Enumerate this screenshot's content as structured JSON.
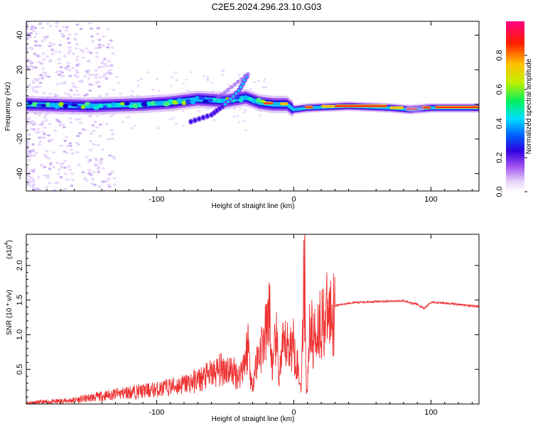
{
  "title": "C2E5.2024.296.23.10.G03",
  "spectrogram": {
    "type": "heatmap",
    "xlabel": "Height of straight line (km)",
    "ylabel": "Frequency (Hz)",
    "xlim": [
      -195,
      135
    ],
    "ylim": [
      -50,
      48
    ],
    "x_ticks": [
      -100,
      0,
      100
    ],
    "x_tick_labels": [
      "-100",
      "0",
      "100"
    ],
    "y_ticks": [
      -40,
      -20,
      0,
      20,
      40
    ],
    "y_tick_labels": [
      "-40",
      "-20",
      "0",
      "20",
      "40"
    ],
    "ridge": [
      {
        "x": -195,
        "y": 0
      },
      {
        "x": -150,
        "y": -1
      },
      {
        "x": -110,
        "y": 0
      },
      {
        "x": -90,
        "y": 1
      },
      {
        "x": -70,
        "y": 3
      },
      {
        "x": -50,
        "y": 2
      },
      {
        "x": -35,
        "y": 4
      },
      {
        "x": -25,
        "y": 1
      },
      {
        "x": -15,
        "y": 0
      },
      {
        "x": -5,
        "y": 0
      },
      {
        "x": 0,
        "y": -3
      },
      {
        "x": 10,
        "y": -2
      },
      {
        "x": 40,
        "y": -1
      },
      {
        "x": 70,
        "y": -2
      },
      {
        "x": 85,
        "y": -3
      },
      {
        "x": 100,
        "y": -2
      },
      {
        "x": 135,
        "y": -2
      }
    ],
    "branch": [
      {
        "x": -75,
        "y": -10
      },
      {
        "x": -60,
        "y": -6
      },
      {
        "x": -50,
        "y": 0
      },
      {
        "x": -40,
        "y": 8
      },
      {
        "x": -33,
        "y": 18
      }
    ],
    "colorbar": {
      "label": "Normalized spectral amplitude",
      "ticks": [
        0.0,
        0.2,
        0.4,
        0.6,
        0.8
      ],
      "tick_labels": [
        "0.0",
        "0.2",
        "0.4",
        "0.6",
        "0.8"
      ],
      "range": [
        0,
        1
      ],
      "colors": [
        "#ffffff",
        "#e0c8f8",
        "#a050f0",
        "#3000e0",
        "#0060ff",
        "#00e0ff",
        "#00f060",
        "#c0f000",
        "#ffc000",
        "#ff2000",
        "#ff0080"
      ]
    }
  },
  "snr": {
    "type": "line",
    "xlabel": "Height of straight line (km)",
    "ylabel": "SNR (10 * v/v)",
    "scale_note": "(x10",
    "scale_exp": "4",
    "xlim": [
      -195,
      135
    ],
    "ylim": [
      0,
      2.45
    ],
    "x_ticks": [
      -100,
      0,
      100
    ],
    "x_tick_labels": [
      "-100",
      "0",
      "100"
    ],
    "y_ticks": [
      0.5,
      1.0,
      1.5,
      2.0
    ],
    "y_tick_labels": [
      "0.5",
      "1.0",
      "1.5",
      "2.0"
    ],
    "color": "#ee3030",
    "points": [
      {
        "x": -195,
        "y": 0.02
      },
      {
        "x": -180,
        "y": 0.03
      },
      {
        "x": -160,
        "y": 0.06
      },
      {
        "x": -150,
        "y": 0.09
      },
      {
        "x": -140,
        "y": 0.12
      },
      {
        "x": -120,
        "y": 0.18
      },
      {
        "x": -100,
        "y": 0.22
      },
      {
        "x": -90,
        "y": 0.26
      },
      {
        "x": -80,
        "y": 0.3
      },
      {
        "x": -70,
        "y": 0.36
      },
      {
        "x": -60,
        "y": 0.45
      },
      {
        "x": -50,
        "y": 0.55
      },
      {
        "x": -45,
        "y": 0.5
      },
      {
        "x": -40,
        "y": 0.42
      },
      {
        "x": -35,
        "y": 0.72
      },
      {
        "x": -33,
        "y": 0.95
      },
      {
        "x": -31,
        "y": 0.25
      },
      {
        "x": -28,
        "y": 0.55
      },
      {
        "x": -25,
        "y": 0.8
      },
      {
        "x": -22,
        "y": 0.95
      },
      {
        "x": -19,
        "y": 1.15
      },
      {
        "x": -18,
        "y": 1.75
      },
      {
        "x": -17,
        "y": 0.85
      },
      {
        "x": -15,
        "y": 0.5
      },
      {
        "x": -13,
        "y": 1.1
      },
      {
        "x": -11,
        "y": 0.4
      },
      {
        "x": -8,
        "y": 0.82
      },
      {
        "x": -5,
        "y": 0.9
      },
      {
        "x": -3,
        "y": 0.86
      },
      {
        "x": 0,
        "y": 0.9
      },
      {
        "x": 3,
        "y": 0.55
      },
      {
        "x": 5,
        "y": 0.25
      },
      {
        "x": 6,
        "y": 0.65
      },
      {
        "x": 8,
        "y": 2.42
      },
      {
        "x": 9,
        "y": 0.3
      },
      {
        "x": 10,
        "y": 0.15
      },
      {
        "x": 11,
        "y": 1.1
      },
      {
        "x": 12,
        "y": 1.2
      },
      {
        "x": 14,
        "y": 0.95
      },
      {
        "x": 17,
        "y": 1.15
      },
      {
        "x": 20,
        "y": 1.25
      },
      {
        "x": 25,
        "y": 1.36
      },
      {
        "x": 30,
        "y": 1.42
      },
      {
        "x": 40,
        "y": 1.46
      },
      {
        "x": 60,
        "y": 1.48
      },
      {
        "x": 80,
        "y": 1.49
      },
      {
        "x": 90,
        "y": 1.44
      },
      {
        "x": 95,
        "y": 1.38
      },
      {
        "x": 100,
        "y": 1.47
      },
      {
        "x": 110,
        "y": 1.46
      },
      {
        "x": 120,
        "y": 1.44
      },
      {
        "x": 135,
        "y": 1.41
      }
    ]
  }
}
